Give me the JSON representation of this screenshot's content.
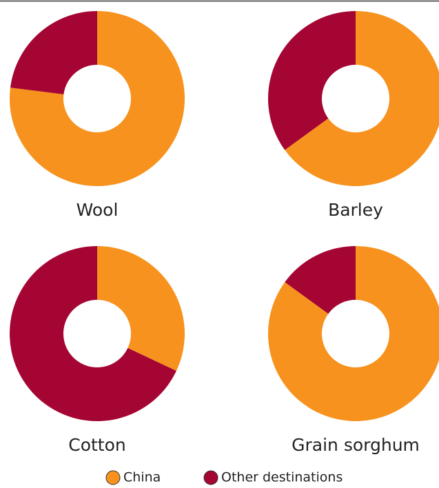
{
  "chart_data": [
    {
      "type": "pie",
      "title": "Wool",
      "categories": [
        "China",
        "Other destinations"
      ],
      "values": [
        77,
        23
      ],
      "colors": [
        "#f7921e",
        "#a50533"
      ]
    },
    {
      "type": "pie",
      "title": "Barley",
      "categories": [
        "China",
        "Other destinations"
      ],
      "values": [
        65,
        35
      ],
      "colors": [
        "#f7921e",
        "#a50533"
      ]
    },
    {
      "type": "pie",
      "title": "Cotton",
      "categories": [
        "China",
        "Other destinations"
      ],
      "values": [
        32,
        68
      ],
      "colors": [
        "#f7921e",
        "#a50533"
      ]
    },
    {
      "type": "pie",
      "title": "Grain sorghum",
      "categories": [
        "China",
        "Other destinations"
      ],
      "values": [
        85,
        15
      ],
      "colors": [
        "#f7921e",
        "#a50533"
      ]
    }
  ]
}
